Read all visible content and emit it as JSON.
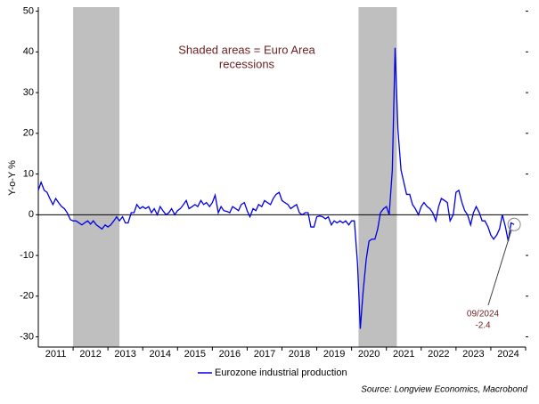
{
  "chart_data": {
    "type": "line",
    "ylabel": "Y-o-Y %",
    "note": [
      "Shaded areas = Euro Area",
      "recessions"
    ],
    "source": "Source: Longview Economics, Macrobond",
    "annotation": {
      "text": "09/2024",
      "value": -2.4,
      "x": 2024.67
    },
    "shaded": [
      [
        2012.0,
        2013.33
      ],
      [
        2020.2,
        2021.3
      ]
    ],
    "shade_color": "#bfbfbf",
    "xlim": [
      2011,
      2025
    ],
    "xticks": [
      {
        "value": 2011.5,
        "label": "2011"
      },
      {
        "value": 2012.5,
        "label": "2012"
      },
      {
        "value": 2013.5,
        "label": "2013"
      },
      {
        "value": 2014.5,
        "label": "2014"
      },
      {
        "value": 2015.5,
        "label": "2015"
      },
      {
        "value": 2016.5,
        "label": "2016"
      },
      {
        "value": 2017.5,
        "label": "2017"
      },
      {
        "value": 2018.5,
        "label": "2018"
      },
      {
        "value": 2019.5,
        "label": "2019"
      },
      {
        "value": 2020.5,
        "label": "2020"
      },
      {
        "value": 2021.5,
        "label": "2021"
      },
      {
        "value": 2022.5,
        "label": "2022"
      },
      {
        "value": 2023.5,
        "label": "2023"
      },
      {
        "value": 2024.5,
        "label": "2024"
      }
    ],
    "ylim": [
      -32.5,
      51
    ],
    "yticks": [
      -30,
      -20,
      -10,
      0,
      10,
      20,
      30,
      40,
      50
    ],
    "x": [
      2011.0,
      2011.08,
      2011.17,
      2011.25,
      2011.33,
      2011.42,
      2011.5,
      2011.58,
      2011.67,
      2011.75,
      2011.83,
      2011.92,
      2012.0,
      2012.08,
      2012.17,
      2012.25,
      2012.33,
      2012.42,
      2012.5,
      2012.58,
      2012.67,
      2012.75,
      2012.83,
      2012.92,
      2013.0,
      2013.08,
      2013.17,
      2013.25,
      2013.33,
      2013.42,
      2013.5,
      2013.58,
      2013.67,
      2013.75,
      2013.83,
      2013.92,
      2014.0,
      2014.08,
      2014.17,
      2014.25,
      2014.33,
      2014.42,
      2014.5,
      2014.58,
      2014.67,
      2014.75,
      2014.83,
      2014.92,
      2015.0,
      2015.08,
      2015.17,
      2015.25,
      2015.33,
      2015.42,
      2015.5,
      2015.58,
      2015.67,
      2015.75,
      2015.83,
      2015.92,
      2016.0,
      2016.08,
      2016.17,
      2016.25,
      2016.33,
      2016.42,
      2016.5,
      2016.58,
      2016.67,
      2016.75,
      2016.83,
      2016.92,
      2017.0,
      2017.08,
      2017.17,
      2017.25,
      2017.33,
      2017.42,
      2017.5,
      2017.58,
      2017.67,
      2017.75,
      2017.83,
      2017.92,
      2018.0,
      2018.08,
      2018.17,
      2018.25,
      2018.33,
      2018.42,
      2018.5,
      2018.58,
      2018.67,
      2018.75,
      2018.83,
      2018.92,
      2019.0,
      2019.08,
      2019.17,
      2019.25,
      2019.33,
      2019.42,
      2019.5,
      2019.58,
      2019.67,
      2019.75,
      2019.83,
      2019.92,
      2020.0,
      2020.08,
      2020.17,
      2020.25,
      2020.33,
      2020.42,
      2020.5,
      2020.58,
      2020.67,
      2020.75,
      2020.83,
      2020.92,
      2021.0,
      2021.08,
      2021.17,
      2021.25,
      2021.33,
      2021.42,
      2021.5,
      2021.58,
      2021.67,
      2021.75,
      2021.83,
      2021.92,
      2022.0,
      2022.08,
      2022.17,
      2022.25,
      2022.33,
      2022.42,
      2022.5,
      2022.58,
      2022.67,
      2022.75,
      2022.83,
      2022.92,
      2023.0,
      2023.08,
      2023.17,
      2023.25,
      2023.33,
      2023.42,
      2023.5,
      2023.58,
      2023.67,
      2023.75,
      2023.83,
      2023.92,
      2024.0,
      2024.08,
      2024.17,
      2024.25,
      2024.33,
      2024.42,
      2024.5,
      2024.58,
      2024.67
    ],
    "series": [
      {
        "name": "Eurozone industrial production",
        "color": "#0000e6",
        "values": [
          6,
          8,
          6,
          5.5,
          4,
          2.5,
          4,
          3,
          2,
          1.5,
          0.5,
          -1.2,
          -1.5,
          -1.5,
          -2,
          -2.5,
          -2,
          -1.5,
          -2.3,
          -1.5,
          -2.5,
          -3,
          -3.5,
          -2.5,
          -3,
          -2.5,
          -1.5,
          -0.5,
          -1.5,
          -0.5,
          -2,
          -2,
          0.5,
          0.5,
          2.5,
          1.5,
          2,
          1.5,
          2,
          0.5,
          1.5,
          0,
          2,
          1,
          0,
          0.5,
          1.5,
          0,
          1,
          1.5,
          2.5,
          3.5,
          1.5,
          2,
          2.5,
          2,
          3.5,
          2.5,
          3,
          2,
          3,
          4.8,
          0.5,
          2,
          1,
          0.8,
          0.5,
          2,
          1.5,
          1,
          2.5,
          3,
          1,
          -0.5,
          1.5,
          1,
          2.5,
          2,
          3.5,
          3,
          2.5,
          4,
          5,
          5.5,
          3.5,
          3,
          2.5,
          1.5,
          2,
          2.5,
          0.5,
          0,
          0.5,
          0.5,
          -3,
          -3,
          -0.5,
          -0.3,
          -0.5,
          -1,
          -0.5,
          -2.5,
          -1.5,
          -2,
          -1.5,
          -2,
          -1.5,
          -2.5,
          -1.5,
          -1.5,
          -12,
          -28,
          -19,
          -11,
          -6.5,
          -6,
          -6,
          -3.5,
          0.5,
          1.5,
          2,
          0,
          11,
          41,
          21,
          11,
          8,
          5,
          5,
          2.5,
          1.5,
          0,
          2,
          3,
          2,
          1.5,
          0.5,
          -1.5,
          2,
          4,
          3.5,
          3,
          -1.5,
          0,
          5.5,
          6,
          3,
          1,
          0,
          -2.5,
          0.5,
          2,
          0.5,
          -1.5,
          -1.5,
          -3,
          -5,
          -6,
          -5,
          -3.5,
          0,
          -3,
          -6.5,
          -2,
          -2.4
        ]
      }
    ]
  }
}
